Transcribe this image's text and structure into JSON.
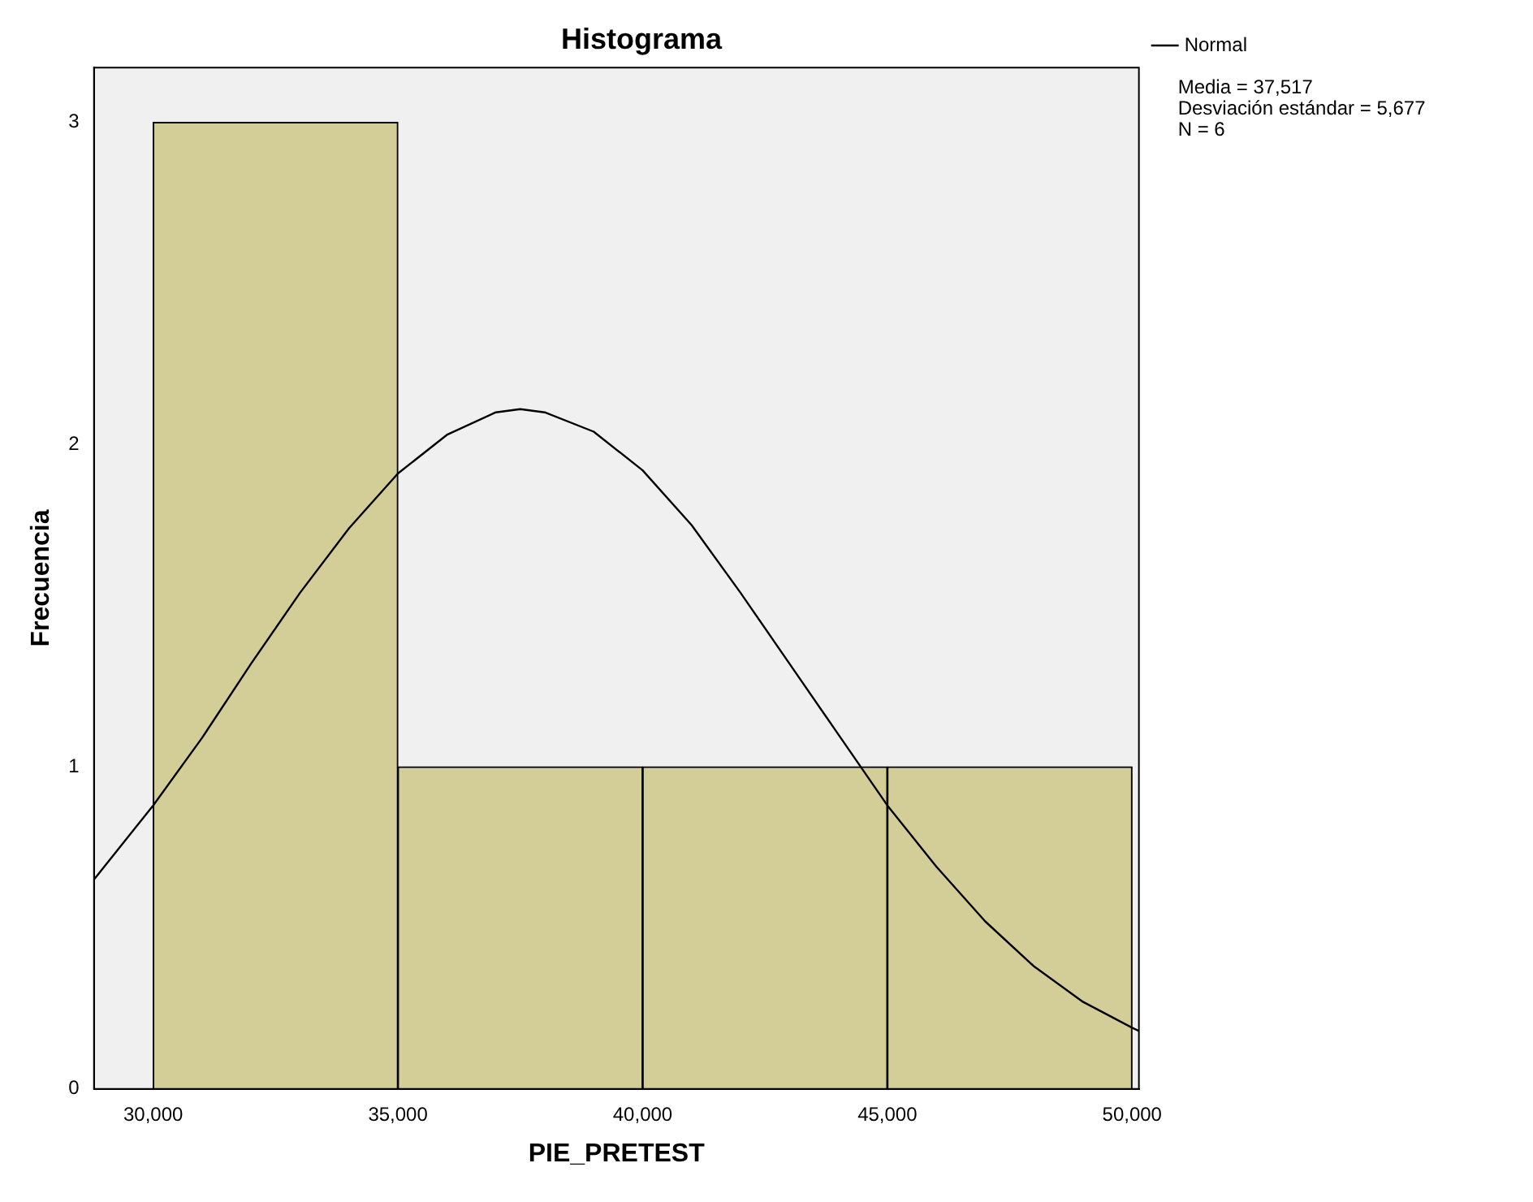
{
  "chart_data": {
    "type": "histogram",
    "title": "Histograma",
    "xlabel": "PIE_PRETEST",
    "ylabel": "Frecuencia",
    "bins": [
      30000,
      35000,
      40000,
      45000,
      50000
    ],
    "values": [
      3,
      1,
      1,
      1
    ],
    "color": "#d3ce98",
    "series": [
      {
        "name": "Normal",
        "type": "line",
        "color": "#000000",
        "x": [
          28790,
          30000,
          31000,
          32000,
          33000,
          34000,
          35000,
          36000,
          37000,
          37500,
          38000,
          39000,
          40000,
          41000,
          42000,
          43000,
          44000,
          45000,
          46000,
          47000,
          48000,
          49000,
          50000,
          50140
        ],
        "values": [
          0.65,
          0.88,
          1.09,
          1.32,
          1.54,
          1.74,
          1.91,
          2.03,
          2.1,
          2.11,
          2.1,
          2.04,
          1.92,
          1.75,
          1.54,
          1.32,
          1.1,
          0.88,
          0.69,
          0.52,
          0.38,
          0.27,
          0.19,
          0.18
        ]
      }
    ],
    "xlim": [
      28790,
      50140
    ],
    "xticks": [
      {
        "value": 30000,
        "label": "30,000"
      },
      {
        "value": 35000,
        "label": "35,000"
      },
      {
        "value": 40000,
        "label": "40,000"
      },
      {
        "value": 45000,
        "label": "45,000"
      },
      {
        "value": 50000,
        "label": "50,000"
      }
    ],
    "ylim": [
      0,
      3.17
    ],
    "yticks": [
      0,
      1,
      2,
      3
    ],
    "grid": false,
    "legend": "top right",
    "marker": "none",
    "line_style": "solid",
    "annotations": [
      "Media = 37,517",
      "Desviación estándar = 5,677",
      "N = 6"
    ]
  }
}
